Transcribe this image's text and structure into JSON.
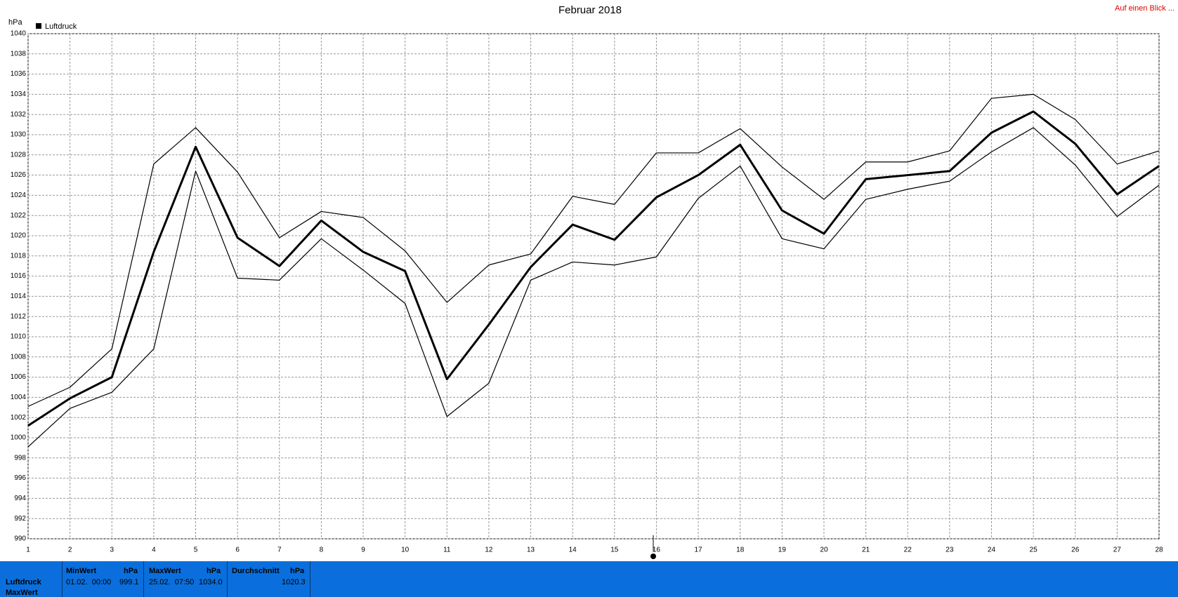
{
  "chart_data": {
    "type": "line",
    "title": "Februar 2018",
    "y_label": "hPa",
    "x": [
      1,
      2,
      3,
      4,
      5,
      6,
      7,
      8,
      9,
      10,
      11,
      12,
      13,
      14,
      15,
      16,
      17,
      18,
      19,
      20,
      21,
      22,
      23,
      24,
      25,
      26,
      27,
      28
    ],
    "series": [
      {
        "name": "Luftdruck",
        "color": "#000000",
        "values": [
          1001.2,
          1003.9,
          1006.0,
          1018.4,
          1028.8,
          1019.8,
          1017.0,
          1021.5,
          1018.4,
          1016.5,
          1005.8,
          1011.2,
          1016.9,
          1021.1,
          1019.6,
          1023.8,
          1026.0,
          1029.0,
          1022.5,
          1020.2,
          1025.6,
          1026.0,
          1026.4,
          1030.2,
          1032.3,
          1029.1,
          1024.1,
          1026.9
        ]
      },
      {
        "color": "#000000",
        "values": [
          1003.1,
          1005.0,
          1008.8,
          1027.1,
          1030.7,
          1026.3,
          1019.8,
          1022.4,
          1021.8,
          1018.5,
          1013.4,
          1017.1,
          1018.2,
          1023.9,
          1023.1,
          1028.2,
          1028.2,
          1030.6,
          1026.8,
          1023.6,
          1027.3,
          1027.3,
          1028.4,
          1033.6,
          1034.0,
          1031.5,
          1027.1,
          1028.4
        ]
      },
      {
        "color": "#000000",
        "values": [
          999.1,
          1002.9,
          1004.5,
          1008.8,
          1026.4,
          1015.8,
          1015.6,
          1019.7,
          1016.6,
          1013.3,
          1002.1,
          1005.4,
          1015.6,
          1017.4,
          1017.1,
          1017.9,
          1023.7,
          1026.9,
          1019.7,
          1018.7,
          1023.6,
          1024.6,
          1025.4,
          1028.3,
          1030.7,
          1027.0,
          1021.9,
          1025.0
        ]
      }
    ],
    "xlim": [
      1,
      28
    ],
    "xticks": [
      1,
      2,
      3,
      4,
      5,
      6,
      7,
      8,
      9,
      10,
      11,
      12,
      13,
      14,
      15,
      16,
      17,
      18,
      19,
      20,
      21,
      22,
      23,
      24,
      25,
      26,
      27,
      28
    ],
    "ylim": [
      990,
      1040
    ],
    "yticks": [
      990,
      992,
      994,
      996,
      998,
      1000,
      1002,
      1004,
      1006,
      1008,
      1010,
      1012,
      1014,
      1016,
      1018,
      1020,
      1022,
      1024,
      1026,
      1028,
      1030,
      1032,
      1034,
      1036,
      1038,
      1040
    ],
    "grid": true
  },
  "link": "Auf einen Blick ...",
  "footer": {
    "row_labels": [
      "Luftdruck",
      "MaxWert"
    ],
    "min": {
      "title": "MinWert",
      "unit": "hPa",
      "time": "01.02.  00:00",
      "value": "999.1"
    },
    "max": {
      "title": "MaxWert",
      "unit": "hPa",
      "time": "25.02.  07:50",
      "value": "1034.0"
    },
    "avg": {
      "title": "Durchschnitt",
      "unit": "hPa",
      "value": "1020.3"
    }
  }
}
